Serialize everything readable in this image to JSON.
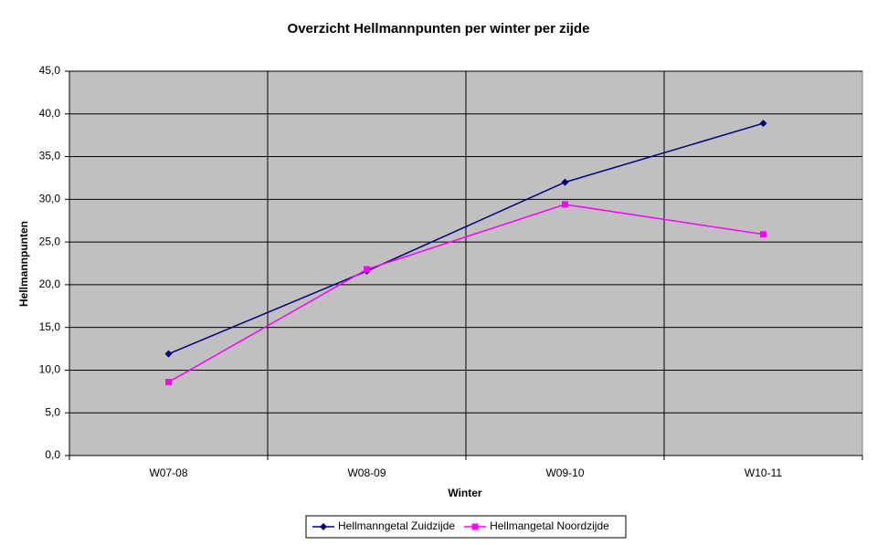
{
  "chart_data": {
    "type": "line",
    "title": "Overzicht Hellmannpunten per winter per zijde",
    "x_label": "Winter",
    "y_label": "Hellmannpunten",
    "categories": [
      "W07-08",
      "W08-09",
      "W09-10",
      "W10-11"
    ],
    "series": [
      {
        "name": "Hellmanngetal Zuidzijde",
        "color": "#000080",
        "marker": "diamond",
        "values": [
          11.9,
          21.6,
          32.0,
          38.9
        ]
      },
      {
        "name": "Hellmangetal Noordzijde",
        "color": "#ff00ff",
        "marker": "square",
        "values": [
          8.6,
          21.8,
          29.4,
          25.9
        ]
      }
    ],
    "ylim": [
      0,
      45
    ],
    "yticks": [
      {
        "value": 0,
        "label": "0,0"
      },
      {
        "value": 5,
        "label": "5,0"
      },
      {
        "value": 10,
        "label": "10,0"
      },
      {
        "value": 15,
        "label": "15,0"
      },
      {
        "value": 20,
        "label": "20,0"
      },
      {
        "value": 25,
        "label": "25,0"
      },
      {
        "value": 30,
        "label": "30,0"
      },
      {
        "value": 35,
        "label": "35,0"
      },
      {
        "value": 40,
        "label": "40,0"
      },
      {
        "value": 45,
        "label": "45,0"
      }
    ],
    "grid": true,
    "plot_background": "#c0c0c0",
    "legend": "bottom"
  }
}
